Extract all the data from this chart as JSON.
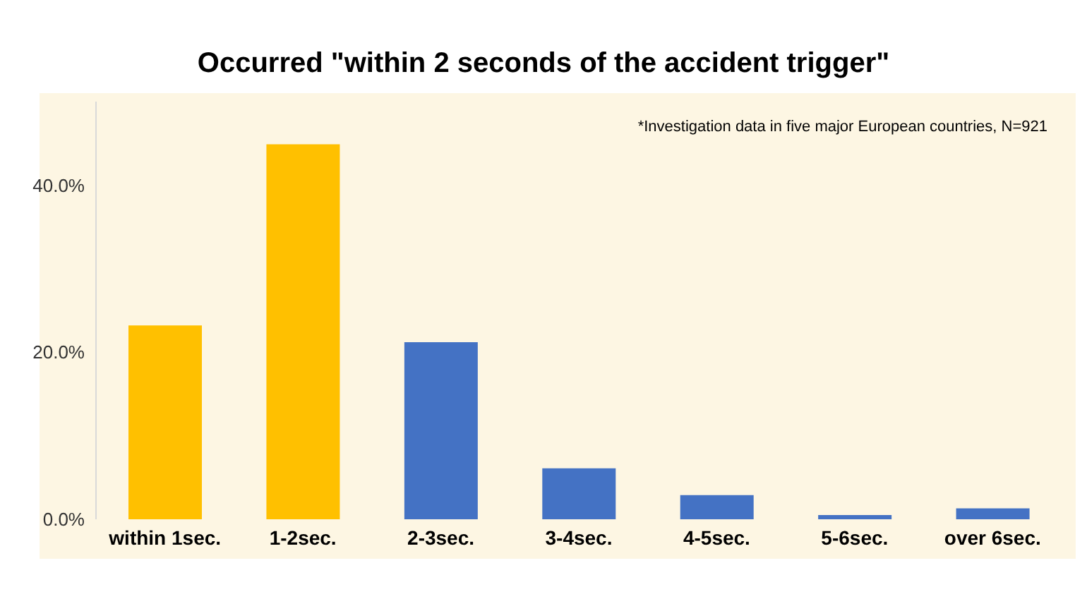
{
  "chart_data": {
    "type": "bar",
    "title": "Occurred \"within 2 seconds of the accident trigger\"",
    "categories": [
      "within 1sec.",
      "1-2sec.",
      "2-3sec.",
      "3-4sec.",
      "4-5sec.",
      "5-6sec.",
      "over 6sec."
    ],
    "values": [
      23.2,
      44.9,
      21.2,
      6.1,
      2.9,
      0.5,
      1.3
    ],
    "colors": [
      "#ffc000",
      "#ffc000",
      "#4472c4",
      "#4472c4",
      "#4472c4",
      "#4472c4",
      "#4472c4"
    ],
    "ylim": [
      0,
      50
    ],
    "yticks": [
      {
        "value": 0,
        "label": "0.0%"
      },
      {
        "value": 20,
        "label": "20.0%"
      },
      {
        "value": 40,
        "label": "40.0%"
      }
    ],
    "grid": false,
    "legend": false,
    "annotations": [
      "*Investigation data in five major European countries, N=921"
    ]
  }
}
